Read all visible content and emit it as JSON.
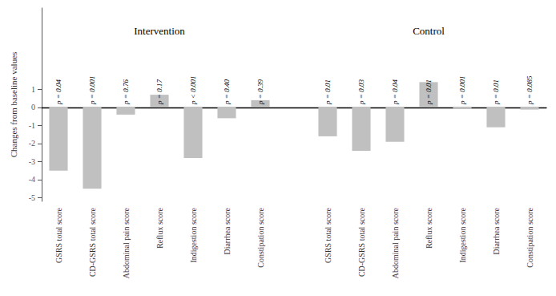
{
  "chart_data": {
    "type": "bar",
    "ylabel": "Changes from baseline values",
    "color": "#C0C0C0",
    "ylim": [
      -5.2,
      5.5
    ],
    "yticks": [
      -5,
      -4,
      -3,
      -2,
      -1,
      0,
      1
    ],
    "grid": false,
    "groups": [
      {
        "title": "Intervention",
        "categories": [
          "GSRS total score",
          "CD-GSRS total score",
          "Abdominal pain score",
          "Reflux score",
          "Indigestion score",
          "Diarrhea score",
          "Constipation score"
        ],
        "values": [
          -3.5,
          -4.5,
          -0.4,
          0.7,
          -2.8,
          -0.6,
          0.4
        ],
        "annotations": [
          "p = 0.04",
          "p = 0.001",
          "p = 0.76",
          "p = 0.17",
          "p < 0.001",
          "p = 0.40",
          "p = 0.39"
        ]
      },
      {
        "title": "Control",
        "categories": [
          "GSRS total score",
          "CD-GSRS total score",
          "Abdominal pain score",
          "Reflux score",
          "Indigestion score",
          "Diarrhea score",
          "Constipation score"
        ],
        "values": [
          -1.6,
          -2.4,
          -1.9,
          1.4,
          -0.05,
          -1.1,
          -0.12
        ],
        "annotations": [
          "p = 0.01",
          "p = 0.03",
          "p = 0.04",
          "p = 0.01",
          "p = 0.001",
          "p = 0.01",
          "p = 0.085"
        ]
      }
    ]
  }
}
